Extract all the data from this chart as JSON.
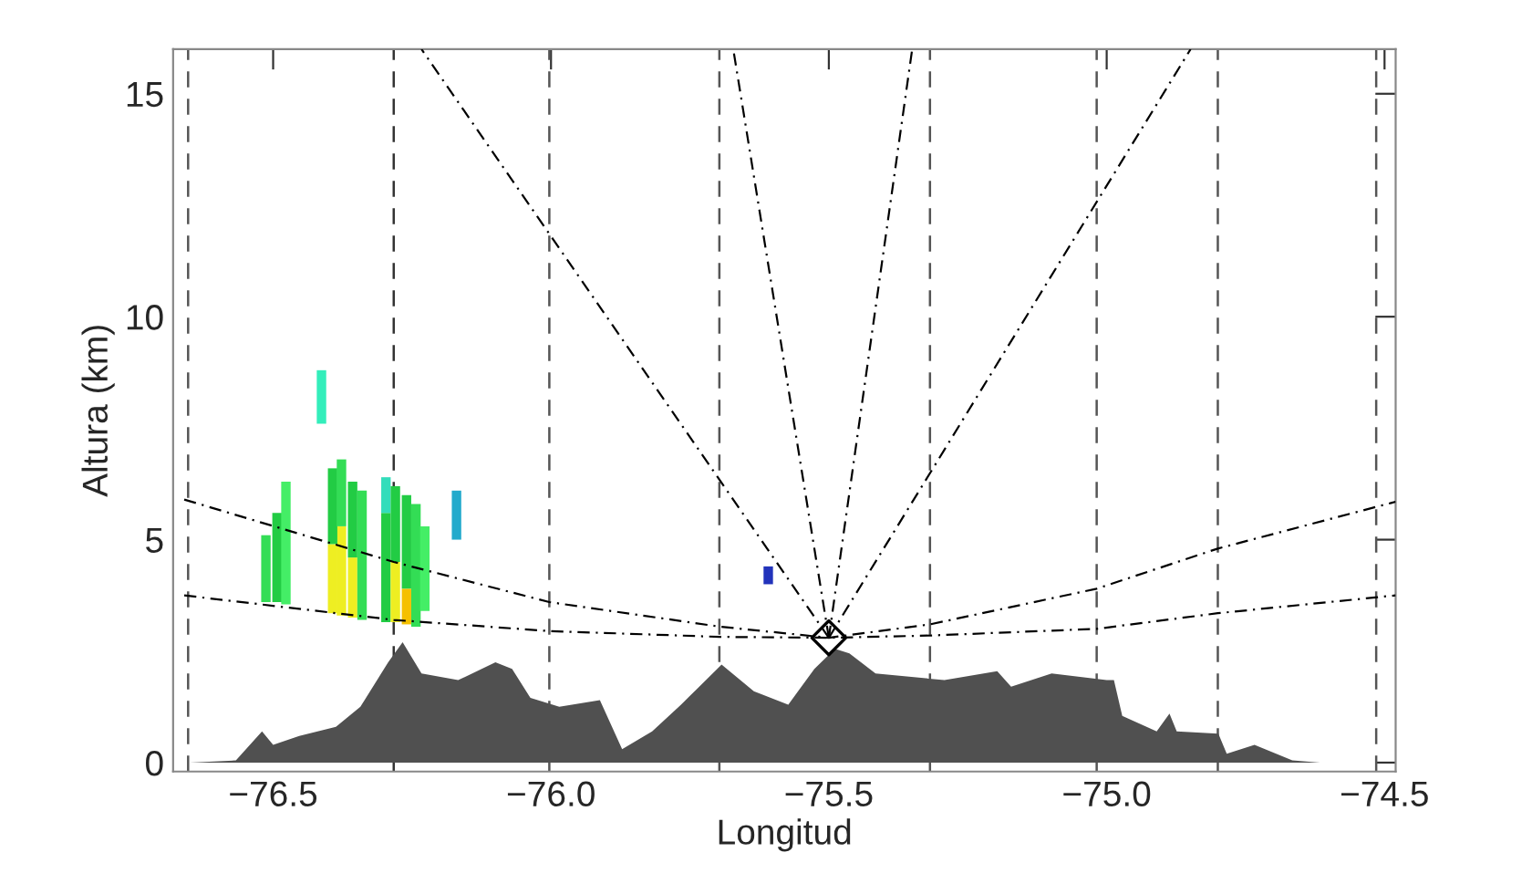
{
  "chart_data": {
    "type": "area",
    "xlabel": "Longitud",
    "ylabel": "Altura (km)",
    "xlim": [
      -76.68,
      -74.48
    ],
    "ylim": [
      -0.2,
      16
    ],
    "xticks": [
      {
        "value": -76.5,
        "label": "−76.5"
      },
      {
        "value": -76.0,
        "label": "−76.0"
      },
      {
        "value": -75.5,
        "label": "−75.5"
      },
      {
        "value": -75.0,
        "label": "−75.0"
      },
      {
        "value": -74.5,
        "label": "−74.5"
      }
    ],
    "yticks": [
      0,
      5,
      10,
      15
    ],
    "grid": false,
    "legend": false,
    "series": [
      {
        "type": "area",
        "color": "#505050",
        "x": [
          -76.65,
          -76.567,
          -76.52,
          -76.5,
          -76.453,
          -76.387,
          -76.343,
          -76.293,
          -76.267,
          -76.233,
          -76.167,
          -76.1,
          -76.07,
          -76.037,
          -75.985,
          -75.912,
          -75.872,
          -75.818,
          -75.766,
          -75.693,
          -75.635,
          -75.573,
          -75.526,
          -75.489,
          -75.463,
          -75.416,
          -75.292,
          -75.197,
          -75.172,
          -75.099,
          -75.0,
          -74.987,
          -74.972,
          -74.91,
          -74.887,
          -74.874,
          -74.799,
          -74.784,
          -74.734,
          -74.666,
          -74.616,
          -74.49
        ],
        "values": [
          0,
          0.05,
          0.7,
          0.4,
          0.6,
          0.8,
          1.25,
          2.25,
          2.7,
          2.0,
          1.85,
          2.25,
          2.1,
          1.45,
          1.25,
          1.4,
          0.3,
          0.7,
          1.3,
          2.2,
          1.6,
          1.3,
          2.1,
          2.55,
          2.45,
          2.0,
          1.85,
          2.05,
          1.7,
          2.0,
          1.85,
          1.85,
          1.05,
          0.7,
          1.1,
          0.7,
          0.65,
          0.2,
          0.4,
          0.05,
          0,
          0
        ]
      },
      {
        "type": "bar",
        "x": [
          -76.513,
          -76.493,
          -76.477,
          -76.413,
          -76.393,
          -76.377,
          -76.357,
          -76.34,
          -76.297,
          -76.28,
          -76.26,
          -76.243,
          -76.227,
          -76.17,
          -75.609
        ],
        "base": [
          3.6,
          3.6,
          3.55,
          7.6,
          3.35,
          3.3,
          3.25,
          3.2,
          3.15,
          3.15,
          3.1,
          3.05,
          3.4,
          5.0,
          4.0
        ],
        "values": [
          1.5,
          2.0,
          2.75,
          1.2,
          1.55,
          2.0,
          1.35,
          2.9,
          2.45,
          1.35,
          0.8,
          2.75,
          1.9,
          1.1,
          0.4
        ],
        "colors": [
          "#33dd55",
          "#22cc44",
          "#44ee66",
          "#33eebb",
          "#eeee22",
          "#eeee22",
          "#eeee22",
          "#33dd55",
          "#22cc44",
          "#eeee22",
          "#f5c000",
          "#33dd55",
          "#44ee66",
          "#22aacc",
          "#2233bb"
        ]
      },
      {
        "type": "bar",
        "x": [
          -76.393,
          -76.377,
          -76.357,
          -76.297,
          -76.28,
          -76.26
        ],
        "base": [
          4.9,
          5.3,
          4.6,
          5.6,
          4.5,
          3.9
        ],
        "values": [
          1.7,
          1.5,
          1.7,
          0.8,
          1.7,
          2.1
        ],
        "colors": [
          "#22cc44",
          "#33dd55",
          "#22cc44",
          "#33ddbb",
          "#22cc44",
          "#22cc44"
        ]
      },
      {
        "type": "line",
        "color": "#000000",
        "line_style": "dashdot",
        "x": [
          -76.66,
          -76.283,
          -76.003,
          -75.697,
          -75.5,
          -75.318,
          -75.018,
          -74.8,
          -74.48
        ],
        "values": [
          5.9,
          4.5,
          3.6,
          3.05,
          2.8,
          3.1,
          3.9,
          4.8,
          5.85
        ]
      },
      {
        "type": "line",
        "color": "#000000",
        "line_style": "dashdot",
        "x": [
          -76.66,
          -76.283,
          -76.003,
          -75.697,
          -75.5,
          -75.318,
          -75.018,
          -74.8,
          -74.48
        ],
        "values": [
          3.75,
          3.2,
          2.95,
          2.82,
          2.8,
          2.85,
          3.0,
          3.35,
          3.75
        ]
      },
      {
        "type": "line",
        "color": "#000000",
        "line_style": "dashdot",
        "x": [
          -75.5,
          -76.233
        ],
        "values": [
          2.8,
          16
        ]
      },
      {
        "type": "line",
        "color": "#000000",
        "line_style": "dashdot",
        "x": [
          -75.5,
          -75.672
        ],
        "values": [
          2.8,
          16
        ]
      },
      {
        "type": "line",
        "color": "#000000",
        "line_style": "dashdot",
        "x": [
          -75.5,
          -75.35
        ],
        "values": [
          2.8,
          16
        ]
      },
      {
        "type": "line",
        "color": "#000000",
        "line_style": "dashdot",
        "x": [
          -75.5,
          -74.849
        ],
        "values": [
          2.8,
          16
        ]
      },
      {
        "type": "scatter",
        "color": "#000000",
        "marker": "diamond",
        "x": [
          -75.5
        ],
        "values": [
          2.8
        ]
      }
    ],
    "ref_lines": [
      {
        "axis": "x",
        "value": -76.653,
        "color": "#555555",
        "line_style": "dashed"
      },
      {
        "axis": "x",
        "value": -76.283,
        "color": "#333333",
        "line_style": "dashed"
      },
      {
        "axis": "x",
        "value": -76.003,
        "color": "#555555",
        "line_style": "dashed"
      },
      {
        "axis": "x",
        "value": -75.697,
        "color": "#555555",
        "line_style": "dashed"
      },
      {
        "axis": "x",
        "value": -75.318,
        "color": "#555555",
        "line_style": "dashed"
      },
      {
        "axis": "x",
        "value": -75.018,
        "color": "#555555",
        "line_style": "dashed"
      },
      {
        "axis": "x",
        "value": -74.8,
        "color": "#555555",
        "line_style": "dashed"
      },
      {
        "axis": "x",
        "value": -74.515,
        "color": "#555555",
        "line_style": "dashed"
      }
    ]
  }
}
